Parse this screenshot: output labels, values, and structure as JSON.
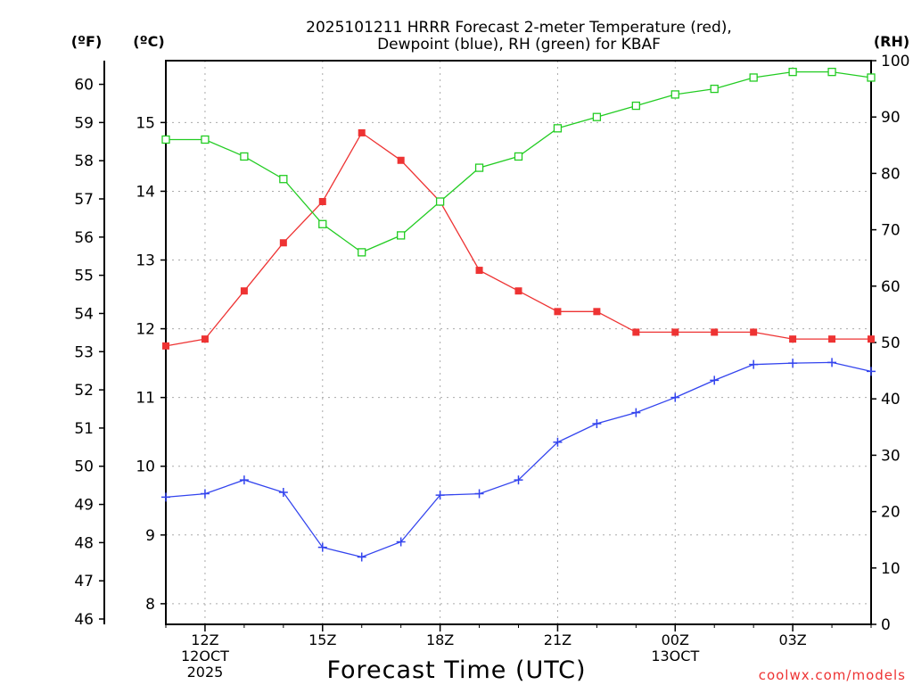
{
  "chart_data": {
    "type": "line",
    "title_line1": "2025101211 HRRR Forecast 2-meter Temperature (red),",
    "title_line2": "Dewpoint (blue), RH (green) for KBAF",
    "xlabel": "Forecast Time (UTC)",
    "unit_f": "(ºF)",
    "unit_c": "(ºC)",
    "unit_rh": "(RH)",
    "credit": "coolwx.com/models",
    "x_hours": [
      11,
      12,
      13,
      14,
      15,
      16,
      17,
      18,
      19,
      20,
      21,
      22,
      23,
      24,
      25,
      26,
      27,
      28,
      29
    ],
    "xlim": [
      11,
      29
    ],
    "x_ticks": [
      {
        "x": 12,
        "lines": [
          "12Z",
          "12OCT",
          "2025"
        ]
      },
      {
        "x": 15,
        "lines": [
          "15Z"
        ]
      },
      {
        "x": 18,
        "lines": [
          "18Z"
        ]
      },
      {
        "x": 21,
        "lines": [
          "21Z"
        ]
      },
      {
        "x": 24,
        "lines": [
          "00Z",
          "13OCT"
        ]
      },
      {
        "x": 27,
        "lines": [
          "03Z"
        ]
      }
    ],
    "x_grid": [
      12,
      15,
      18,
      21,
      24,
      27
    ],
    "c_axis": {
      "ylim": [
        7.7,
        15.9
      ],
      "ticks": [
        8,
        9,
        10,
        11,
        12,
        13,
        14,
        15
      ]
    },
    "f_axis": {
      "ticks": [
        46,
        47,
        48,
        49,
        50,
        51,
        52,
        53,
        54,
        55,
        56,
        57,
        58,
        59,
        60
      ]
    },
    "rh_axis": {
      "ylim": [
        0,
        100
      ],
      "ticks": [
        0,
        10,
        20,
        30,
        40,
        50,
        60,
        70,
        80,
        90,
        100
      ]
    },
    "series": [
      {
        "name": "Temperature",
        "units": "C",
        "color": "#ee3333",
        "marker": "filled-square",
        "values": [
          11.75,
          11.85,
          12.55,
          13.25,
          13.85,
          14.85,
          14.45,
          13.85,
          12.85,
          12.55,
          12.25,
          12.25,
          11.95,
          11.95,
          11.95,
          11.95,
          11.85,
          11.85,
          11.85
        ]
      },
      {
        "name": "Dewpoint",
        "units": "C",
        "color": "#3344ee",
        "marker": "plus",
        "values": [
          9.55,
          9.6,
          9.8,
          9.62,
          8.82,
          8.68,
          8.9,
          9.58,
          9.6,
          9.8,
          10.35,
          10.62,
          10.78,
          11.0,
          11.25,
          11.48,
          11.5,
          11.51,
          11.38
        ]
      },
      {
        "name": "RH",
        "units": "%",
        "color": "#22cc22",
        "marker": "open-square",
        "values": [
          86,
          86,
          83,
          79,
          71,
          66,
          69,
          75,
          81,
          83,
          88,
          90,
          92,
          94,
          95,
          97,
          98,
          98,
          97
        ]
      }
    ]
  }
}
